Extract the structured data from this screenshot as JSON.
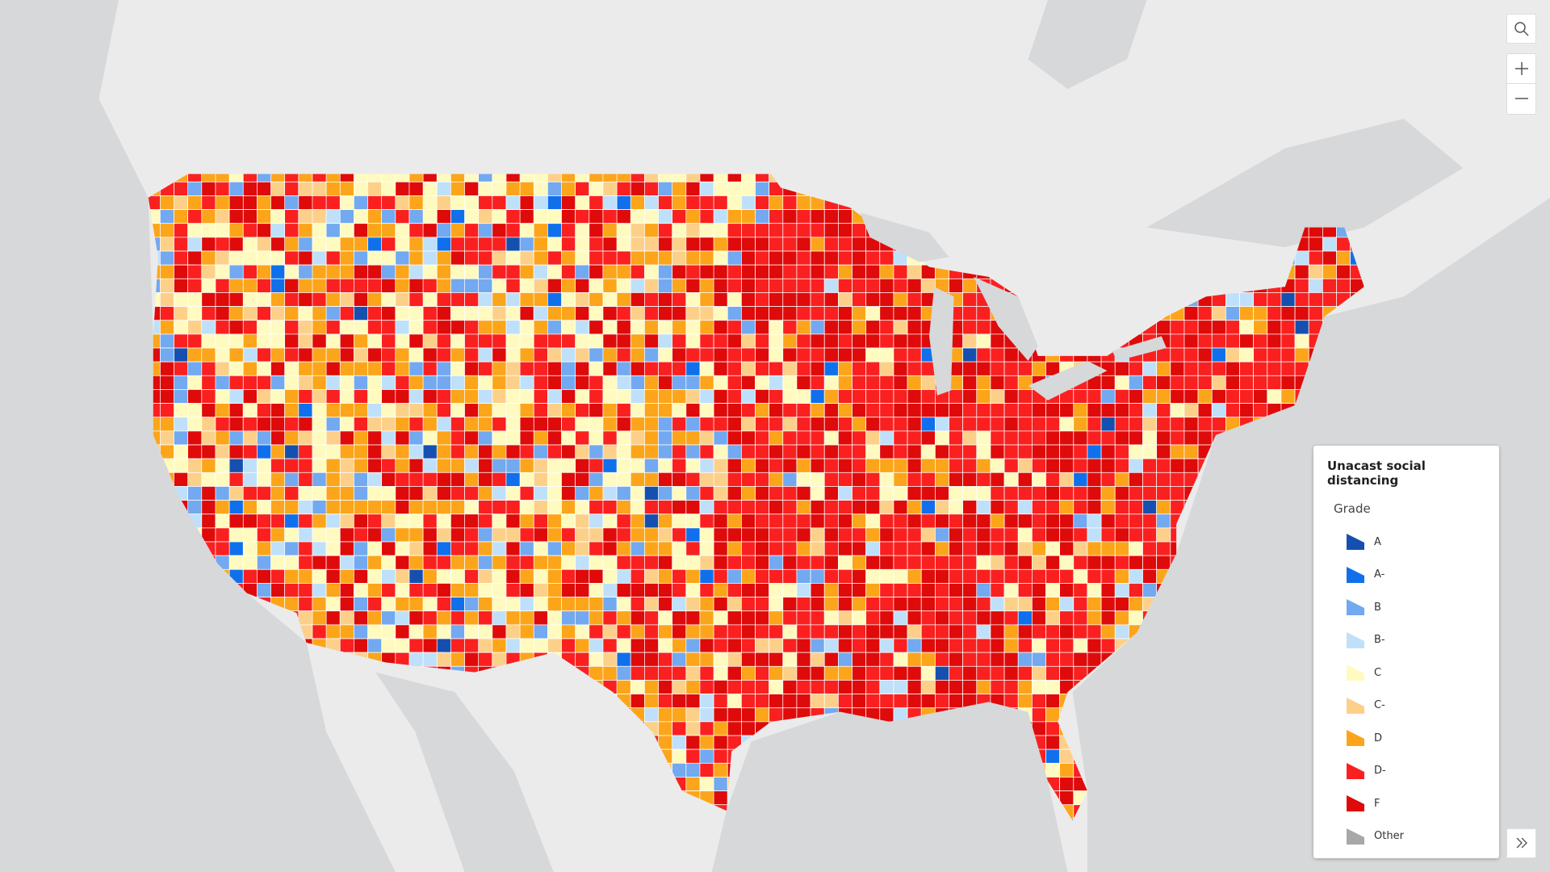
{
  "legend": {
    "title": "Unacast social distancing",
    "subtitle": "Grade",
    "items": [
      {
        "label": "A",
        "color": "#1550b0"
      },
      {
        "label": "A-",
        "color": "#1070ec"
      },
      {
        "label": "B",
        "color": "#72a9f0"
      },
      {
        "label": "B-",
        "color": "#bfe0fa"
      },
      {
        "label": "C",
        "color": "#fffbc0"
      },
      {
        "label": "C-",
        "color": "#fdd08a"
      },
      {
        "label": "D",
        "color": "#fca51a"
      },
      {
        "label": "D-",
        "color": "#fa2020"
      },
      {
        "label": "F",
        "color": "#df0a0a"
      },
      {
        "label": "Other",
        "color": "#a8a8a8"
      }
    ]
  }
}
